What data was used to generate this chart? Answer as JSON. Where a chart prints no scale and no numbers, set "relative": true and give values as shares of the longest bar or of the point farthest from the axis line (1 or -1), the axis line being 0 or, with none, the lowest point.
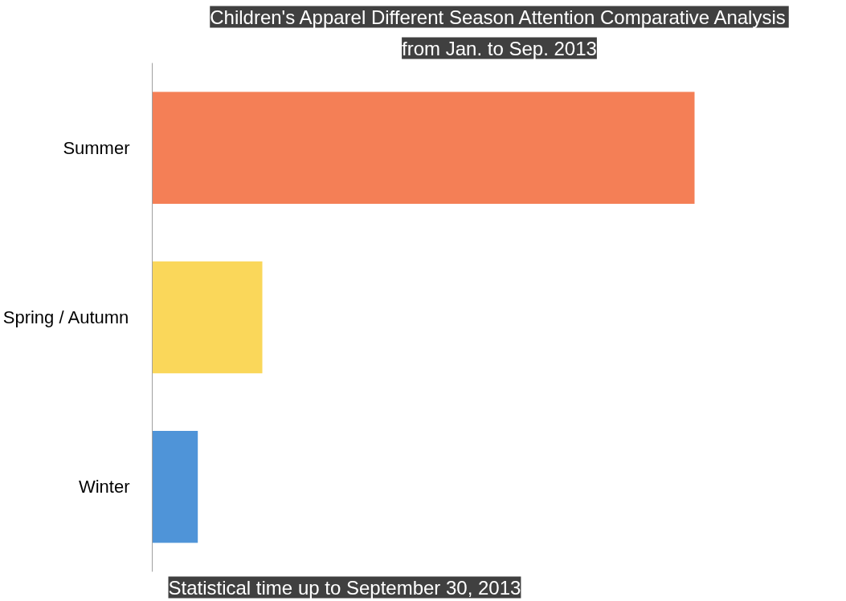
{
  "chart_data": {
    "type": "bar",
    "orientation": "horizontal",
    "relative": true,
    "title": "Children's Apparel Different Season Attention Comparative Analysis",
    "subtitle": "from Jan. to Sep. 2013",
    "categories": [
      "Summer",
      "Spring / Autumn",
      "Winter"
    ],
    "values": [
      1,
      0.203,
      0.084
    ],
    "colors": [
      "#f47f56",
      "#fad75a",
      "#4f94d8"
    ],
    "annotations": [
      "Statistical time up to September 30, 2013"
    ],
    "grid": false
  }
}
